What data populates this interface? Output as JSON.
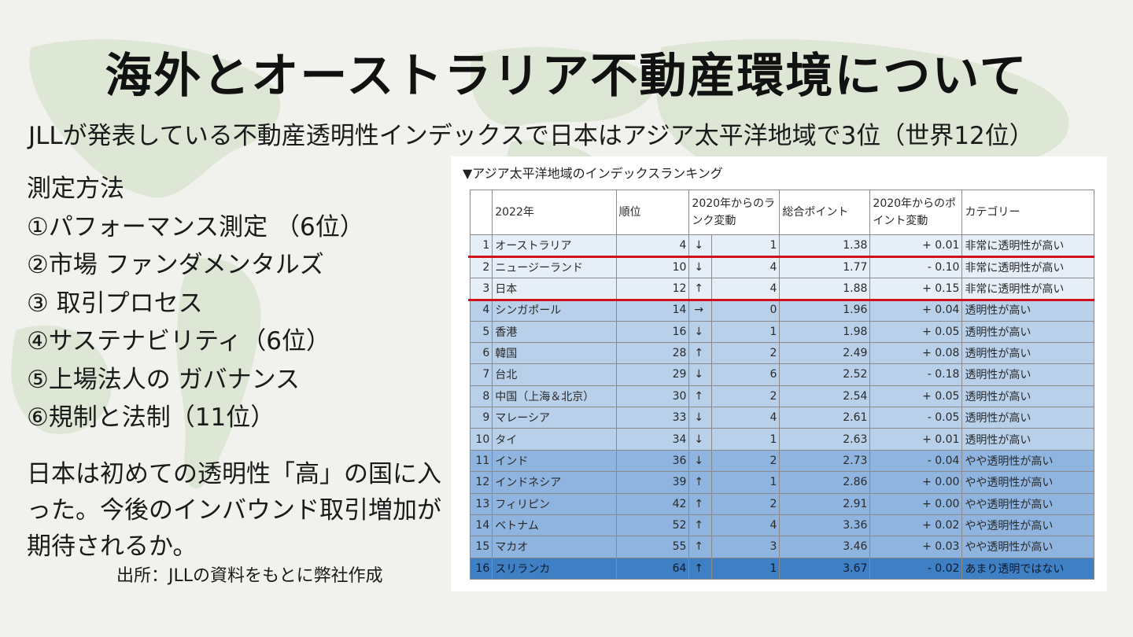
{
  "title": "海外とオーストラリア不動産環境について",
  "subtitle": "JLLが発表している不動産透明性インデックスで日本はアジア太平洋地域で3位（世界12位）",
  "methods": [
    "測定方法",
    "①パフォーマンス測定 （6位）",
    "②市場 ファンダメンタルズ",
    "③ 取引プロセス",
    "④サステナビリティ（6位）",
    "⑤上場法人の ガバナンス",
    "⑥規制と法制（11位）"
  ],
  "note": "日本は初めての透明性「高」の国に入った。今後のインバウンド取引増加が期待されるか。",
  "source": "出所：JLLの資料をもとに弊社作成",
  "table": {
    "caption": "▼アジア太平洋地域のインデックスランキング",
    "headers": [
      "",
      "2022年",
      "順位",
      "2020年からのランク変動",
      "",
      "総合ポイント",
      "2020年からのポイント変動",
      "カテゴリー"
    ],
    "rows": [
      {
        "no": "1",
        "name": "オーストラリア",
        "rank": "4",
        "arrow": "↓",
        "change": "1",
        "score": "1.38",
        "pchange": "+ 0.01",
        "category": "非常に透明性が高い",
        "bg": "#e6eef7"
      },
      {
        "no": "2",
        "name": "ニュージーランド",
        "rank": "10",
        "arrow": "↓",
        "change": "4",
        "score": "1.77",
        "pchange": "- 0.10",
        "category": "非常に透明性が高い",
        "bg": "#e6eef7"
      },
      {
        "no": "3",
        "name": "日本",
        "rank": "12",
        "arrow": "↑",
        "change": "4",
        "score": "1.88",
        "pchange": "+ 0.15",
        "category": "非常に透明性が高い",
        "bg": "#e6eef7"
      },
      {
        "no": "4",
        "name": "シンガポール",
        "rank": "14",
        "arrow": "→",
        "change": "0",
        "score": "1.96",
        "pchange": "+ 0.04",
        "category": "透明性が高い",
        "bg": "#b8d0ea"
      },
      {
        "no": "5",
        "name": "香港",
        "rank": "16",
        "arrow": "↓",
        "change": "1",
        "score": "1.98",
        "pchange": "+ 0.05",
        "category": "透明性が高い",
        "bg": "#b8d0ea"
      },
      {
        "no": "6",
        "name": "韓国",
        "rank": "28",
        "arrow": "↑",
        "change": "2",
        "score": "2.49",
        "pchange": "+ 0.08",
        "category": "透明性が高い",
        "bg": "#b8d0ea"
      },
      {
        "no": "7",
        "name": "台北",
        "rank": "29",
        "arrow": "↓",
        "change": "6",
        "score": "2.52",
        "pchange": "- 0.18",
        "category": "透明性が高い",
        "bg": "#b8d0ea"
      },
      {
        "no": "8",
        "name": "中国（上海＆北京）",
        "rank": "30",
        "arrow": "↑",
        "change": "2",
        "score": "2.54",
        "pchange": "+ 0.05",
        "category": "透明性が高い",
        "bg": "#b8d0ea"
      },
      {
        "no": "9",
        "name": "マレーシア",
        "rank": "33",
        "arrow": "↓",
        "change": "4",
        "score": "2.61",
        "pchange": "- 0.05",
        "category": "透明性が高い",
        "bg": "#b8d0ea"
      },
      {
        "no": "10",
        "name": "タイ",
        "rank": "34",
        "arrow": "↓",
        "change": "1",
        "score": "2.63",
        "pchange": "+ 0.01",
        "category": "透明性が高い",
        "bg": "#b8d0ea"
      },
      {
        "no": "11",
        "name": "インド",
        "rank": "36",
        "arrow": "↓",
        "change": "2",
        "score": "2.73",
        "pchange": "- 0.04",
        "category": "やや透明性が高い",
        "bg": "#8fb4df"
      },
      {
        "no": "12",
        "name": "インドネシア",
        "rank": "39",
        "arrow": "↑",
        "change": "1",
        "score": "2.86",
        "pchange": "+ 0.00",
        "category": "やや透明性が高い",
        "bg": "#8fb4df"
      },
      {
        "no": "13",
        "name": "フィリピン",
        "rank": "42",
        "arrow": "↑",
        "change": "2",
        "score": "2.91",
        "pchange": "+ 0.00",
        "category": "やや透明性が高い",
        "bg": "#8fb4df"
      },
      {
        "no": "14",
        "name": "ベトナム",
        "rank": "52",
        "arrow": "↑",
        "change": "4",
        "score": "3.36",
        "pchange": "+ 0.02",
        "category": "やや透明性が高い",
        "bg": "#8fb4df"
      },
      {
        "no": "15",
        "name": "マカオ",
        "rank": "55",
        "arrow": "↑",
        "change": "3",
        "score": "3.46",
        "pchange": "+ 0.03",
        "category": "やや透明性が高い",
        "bg": "#8fb4df"
      },
      {
        "no": "16",
        "name": "スリランカ",
        "rank": "64",
        "arrow": "↑",
        "change": "1",
        "score": "3.67",
        "pchange": "- 0.02",
        "category": "あまり透明ではない",
        "bg": "#3f7fc4"
      }
    ]
  },
  "colors": {
    "highlight_line": "#d0101a",
    "very_high": "#e6eef7",
    "high": "#b8d0ea",
    "somewhat_high": "#8fb4df",
    "not_transparent": "#3f7fc4"
  }
}
